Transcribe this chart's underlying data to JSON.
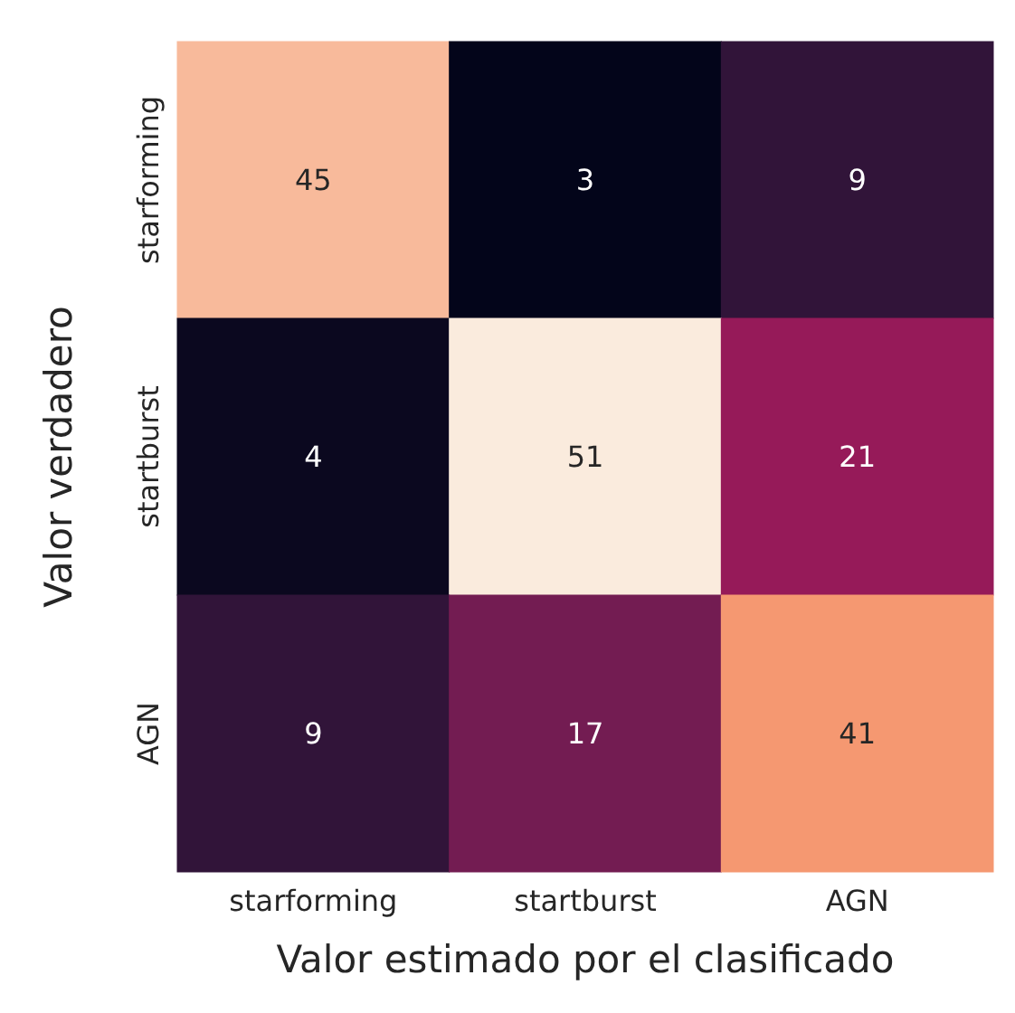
{
  "chart_data": {
    "type": "heatmap",
    "xlabel": "Valor estimado por el clasificado",
    "ylabel": "Valor verdadero",
    "categories": [
      "starforming",
      "startburst",
      "AGN"
    ],
    "y_categories": [
      "starforming",
      "startburst",
      "AGN"
    ],
    "cells": [
      [
        45,
        3,
        9
      ],
      [
        4,
        51,
        21
      ],
      [
        9,
        17,
        41
      ]
    ],
    "colors": [
      "#03051a",
      "#4c1d4b",
      "#a11a5b",
      "#e83f3f",
      "#f69c73",
      "#faebdd"
    ],
    "data_labels": true
  }
}
